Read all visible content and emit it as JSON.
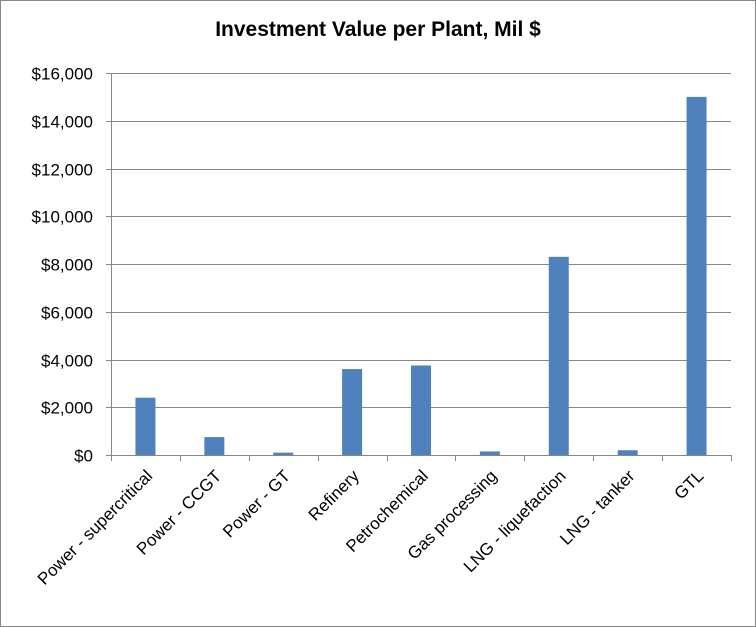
{
  "chart_data": {
    "type": "bar",
    "title": "Investment Value per Plant, Mil $",
    "xlabel": "",
    "ylabel": "",
    "categories": [
      "Power - supercritical",
      "Power - CCGT",
      "Power - GT",
      "Refinery",
      "Petrochemical",
      "Gas processing",
      "LNG - liquefaction",
      "LNG - tanker",
      "GTL"
    ],
    "values": [
      2400,
      750,
      100,
      3600,
      3750,
      150,
      8300,
      200,
      15000
    ],
    "ylim": [
      0,
      16000
    ],
    "yticks": [
      0,
      2000,
      4000,
      6000,
      8000,
      10000,
      12000,
      14000,
      16000
    ],
    "ytick_labels": [
      "$0",
      "$2,000",
      "$4,000",
      "$6,000",
      "$8,000",
      "$10,000",
      "$12,000",
      "$14,000",
      "$16,000"
    ],
    "grid": true,
    "legend": "none",
    "bar_color": "#4f81bd",
    "grid_color": "#868686"
  }
}
